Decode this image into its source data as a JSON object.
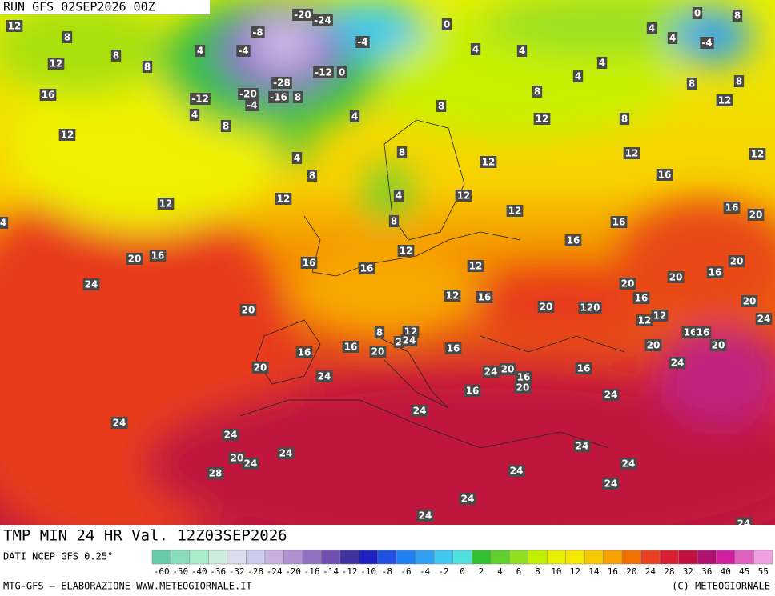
{
  "header": {
    "run": "RUN GFS 02SEP2026 00Z"
  },
  "map": {
    "labels": [
      12,
      8,
      8,
      12,
      8,
      4,
      -8,
      -4,
      -20,
      -24,
      -4,
      0,
      -28,
      -12,
      0,
      -12,
      -20,
      -16,
      8,
      -4,
      4,
      8,
      4,
      16,
      12,
      8,
      4,
      4,
      4,
      4,
      4,
      4,
      -4,
      0,
      8,
      8,
      12,
      8,
      8,
      12,
      8,
      4,
      8,
      8,
      12,
      12,
      16,
      12,
      12,
      12,
      4,
      12,
      12,
      16,
      16,
      20,
      16,
      8,
      20,
      16,
      16,
      16,
      12,
      12,
      24,
      20,
      12,
      16,
      20,
      120,
      20,
      16,
      20,
      16,
      20,
      20,
      12,
      12,
      16,
      16,
      20,
      24,
      20,
      8,
      12,
      2,
      24,
      16,
      16,
      20,
      16,
      20,
      24,
      24,
      20,
      16,
      20,
      16,
      24,
      16,
      24,
      24,
      24,
      24,
      20,
      24,
      24,
      24,
      24,
      24,
      28,
      24,
      24,
      24,
      24,
      4
    ]
  },
  "footer": {
    "title": "TMP MIN 24 HR Val. 12Z03SEP2026",
    "source": "DATI NCEP GFS 0.25°",
    "credit": "MTG-GFS — ELABORAZIONE WWW.METEOGIORNALE.IT",
    "copyright": "(C) METEOGIORNALE"
  },
  "legend": {
    "ticks": [
      -60,
      -50,
      -40,
      -36,
      -32,
      -28,
      -24,
      -20,
      -16,
      -14,
      -12,
      -10,
      -8,
      -6,
      -4,
      -2,
      0,
      2,
      4,
      6,
      8,
      10,
      12,
      14,
      16,
      20,
      24,
      28,
      32,
      36,
      40,
      45,
      55
    ],
    "colors": [
      "#66ccaa",
      "#88ddbb",
      "#aaeecc",
      "#cceedd",
      "#ddddee",
      "#ccccee",
      "#c8b0e0",
      "#b090d0",
      "#9070c0",
      "#7050b0",
      "#4030a0",
      "#2020c0",
      "#2050e0",
      "#2080f0",
      "#30a0f0",
      "#40c8f0",
      "#50e0e0",
      "#30c030",
      "#60d030",
      "#90e020",
      "#c0f000",
      "#e8f000",
      "#f8e800",
      "#f8c800",
      "#f8a000",
      "#f07000",
      "#e84020",
      "#d82030",
      "#c01040",
      "#b01070",
      "#d020a0",
      "#e060c0",
      "#f0a0e0"
    ]
  }
}
